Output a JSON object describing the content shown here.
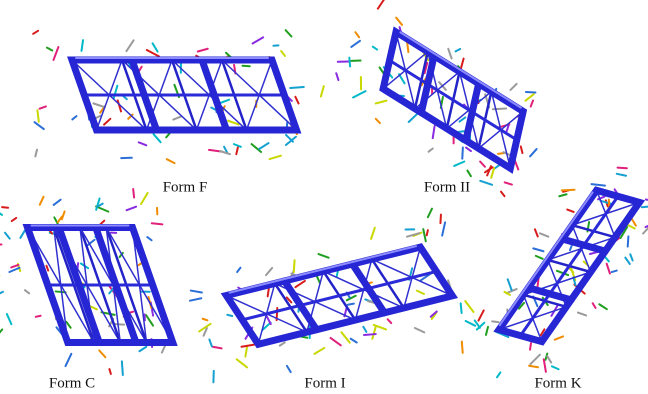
{
  "figure": {
    "panels": [
      {
        "label": "Form F"
      },
      {
        "label": "Form II"
      },
      {
        "label": "Form C"
      },
      {
        "label": "Form I"
      },
      {
        "label": "Form K"
      }
    ]
  }
}
